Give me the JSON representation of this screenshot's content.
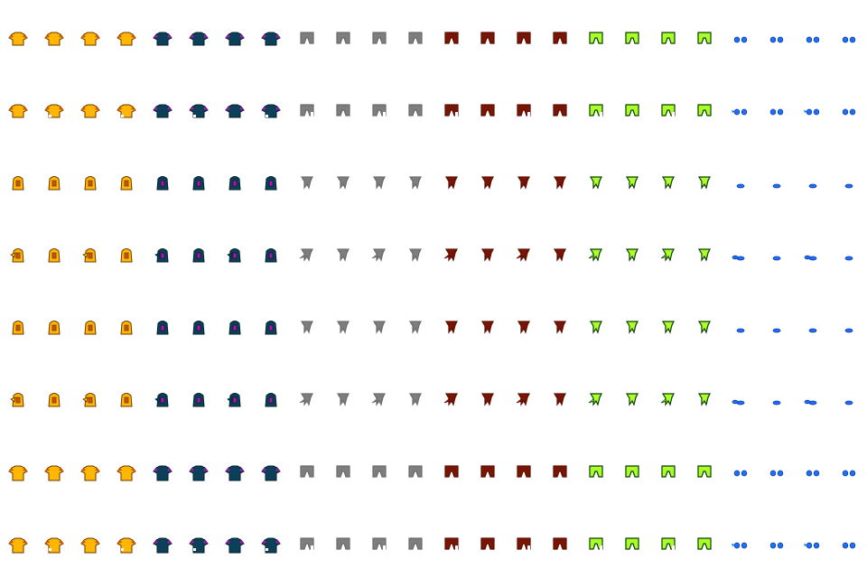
{
  "sheet": {
    "rows": [
      {
        "pose": "front"
      },
      {
        "pose": "front-walk"
      },
      {
        "pose": "left"
      },
      {
        "pose": "left-walk"
      },
      {
        "pose": "right"
      },
      {
        "pose": "right-walk"
      },
      {
        "pose": "back"
      },
      {
        "pose": "back-walk"
      }
    ],
    "groups": [
      {
        "name": "shirt-yellow",
        "kind": "shirt",
        "fill": "#ffb703",
        "stroke": "#6b3a00",
        "accent": "#d35400"
      },
      {
        "name": "shirt-navy",
        "kind": "shirt",
        "fill": "#0b4058",
        "stroke": "#04202d",
        "accent": "#b10fb1"
      },
      {
        "name": "pants-gray",
        "kind": "pants",
        "fill": "#7d7d7d",
        "stroke": "#6b6b6b",
        "accent": "#7d7d7d"
      },
      {
        "name": "pants-maroon",
        "kind": "pants",
        "fill": "#7a1404",
        "stroke": "#5a0e02",
        "accent": "#7a1404"
      },
      {
        "name": "pants-lime",
        "kind": "pants",
        "fill": "#aaff2a",
        "stroke": "#0b3d00",
        "accent": "#aaff2a"
      },
      {
        "name": "shoes-blue",
        "kind": "shoes",
        "fill": "#1f6fff",
        "stroke": "#0a3fa8",
        "accent": "#1f6fff"
      }
    ],
    "frames_per_group": 4
  }
}
